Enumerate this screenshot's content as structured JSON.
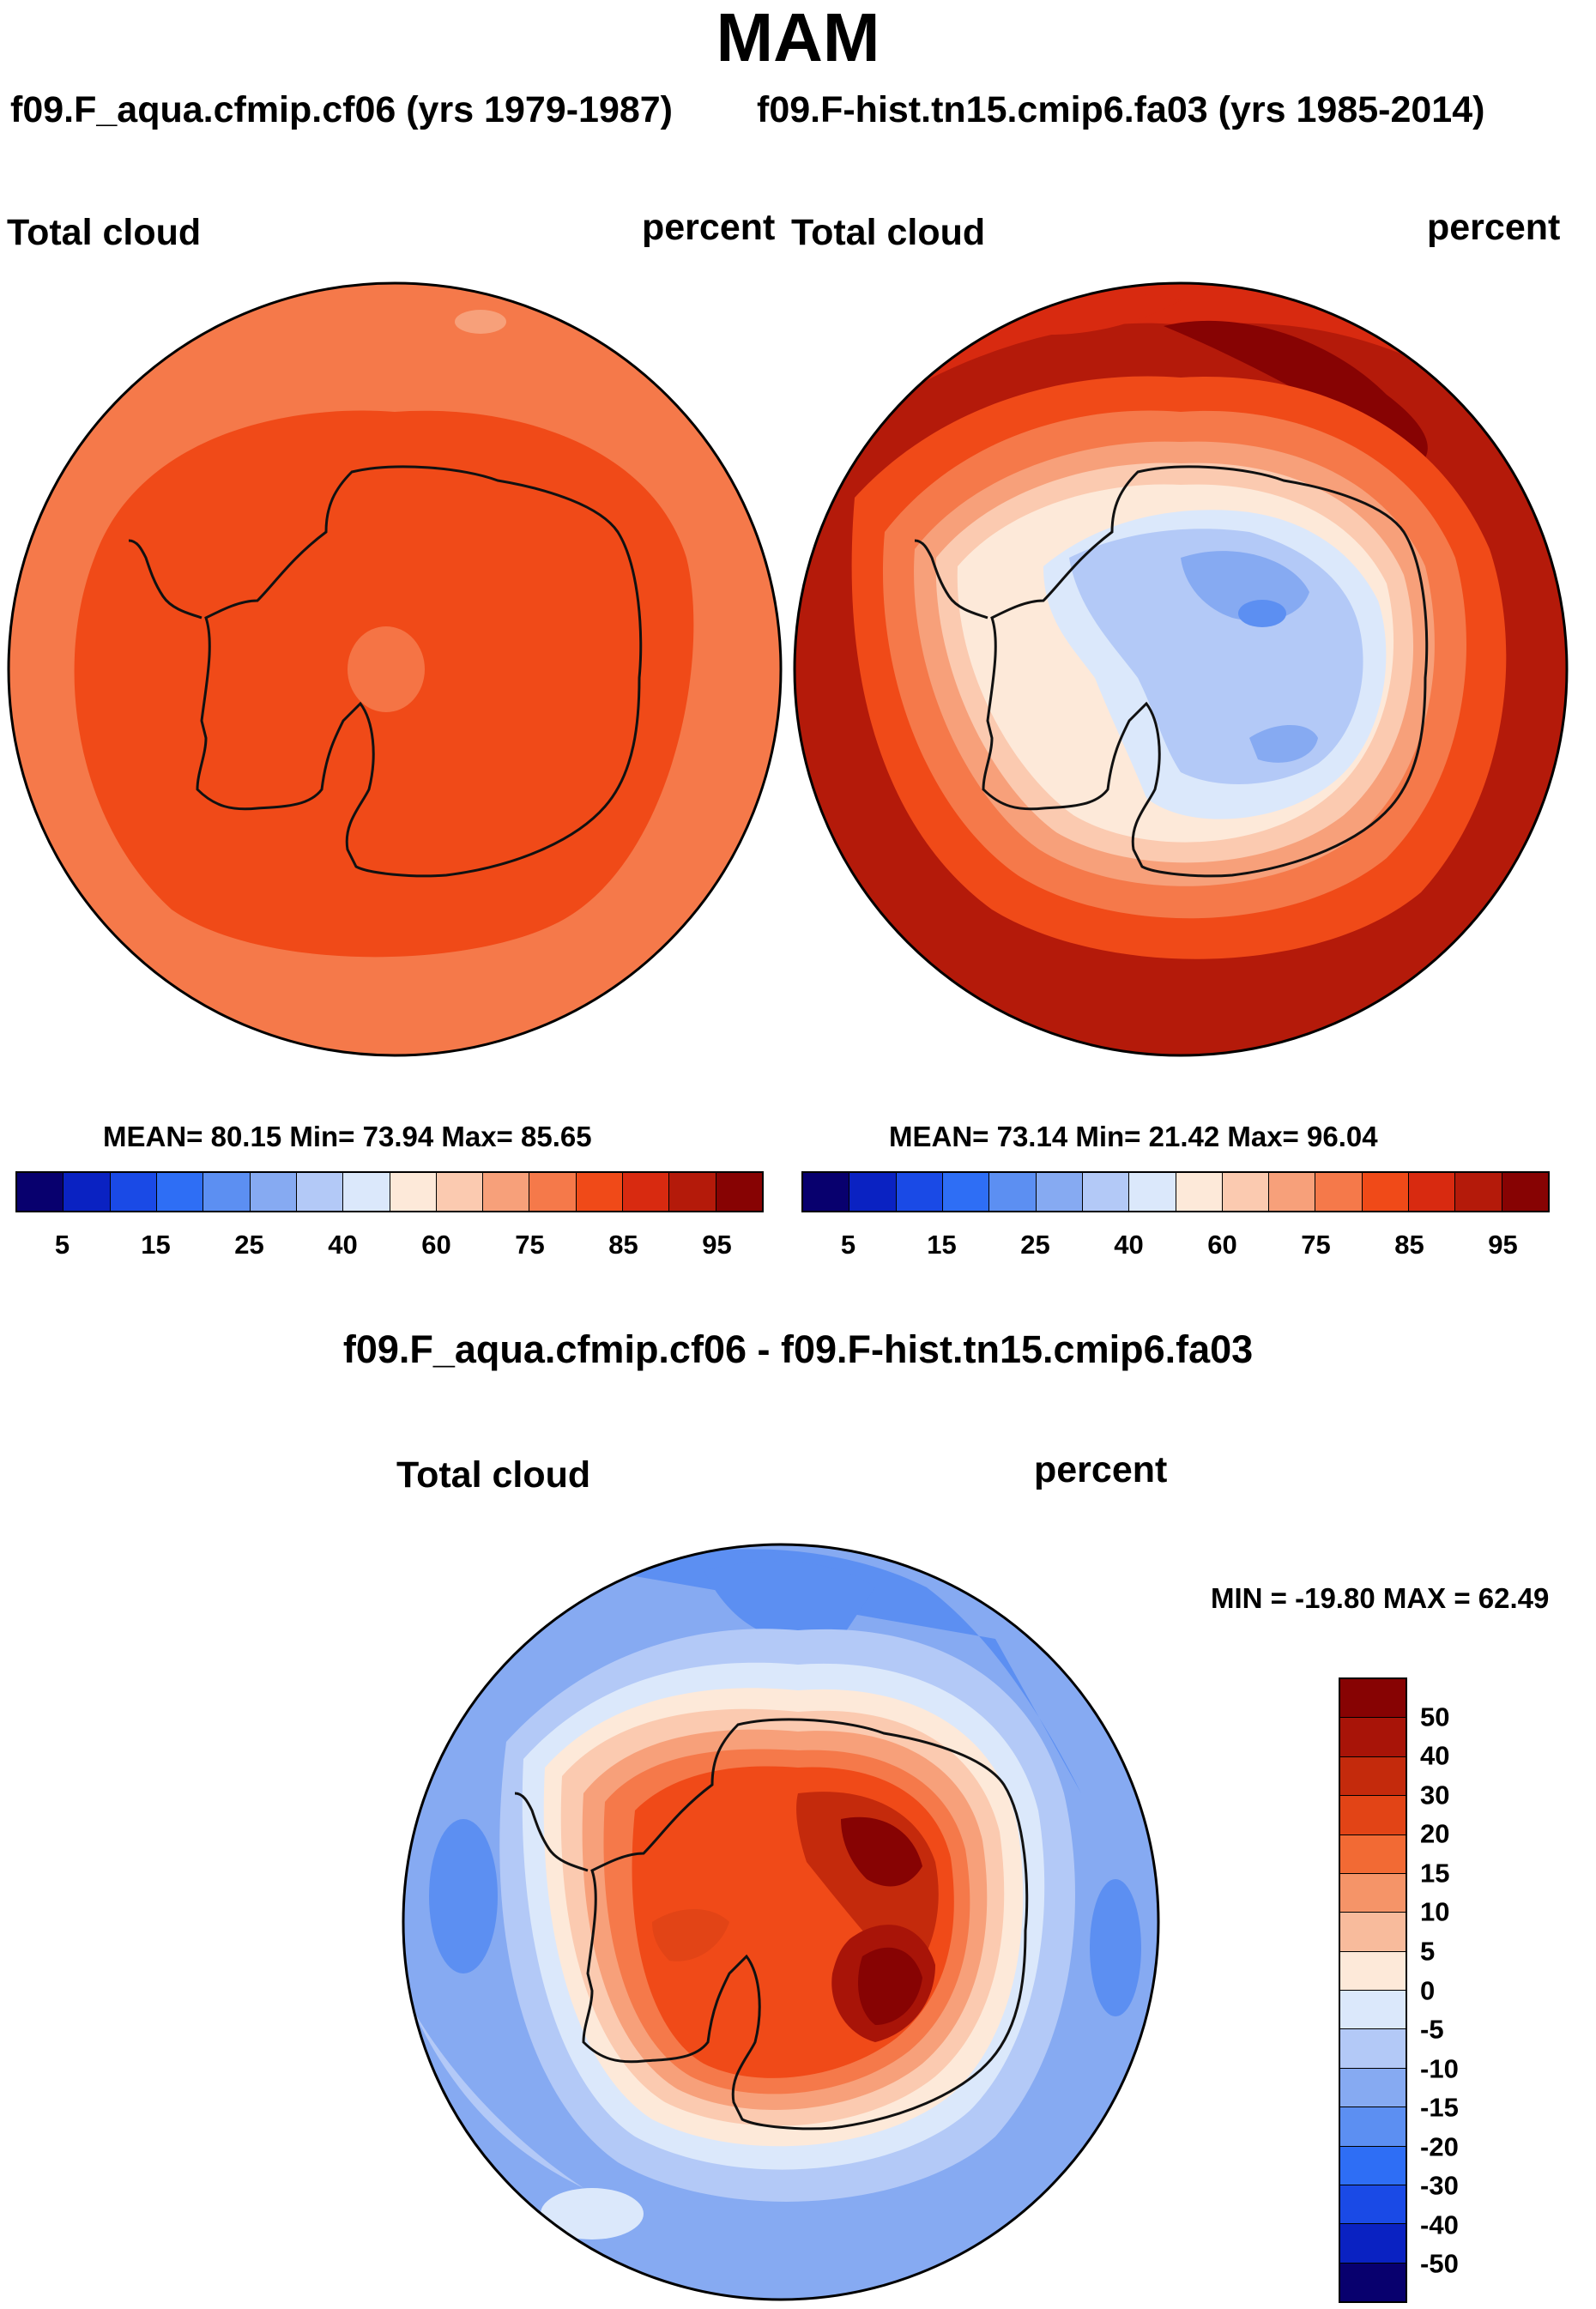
{
  "title": "MAM",
  "panels": [
    {
      "case_title": "f09.F_aqua.cfmip.cf06 (yrs 1979-1987)",
      "var_label": "Total cloud",
      "units": "percent",
      "stats": "MEAN=  80.15  Min=  73.94  Max=  85.65"
    },
    {
      "case_title": "f09.F-hist.tn15.cmip6.fa03 (yrs 1985-2014)",
      "var_label": "Total cloud",
      "units": "percent",
      "stats": "MEAN=  73.14  Min=  21.42  Max=  96.04"
    }
  ],
  "diff": {
    "title": "f09.F_aqua.cfmip.cf06 - f09.F-hist.tn15.cmip6.fa03",
    "var_label": "Total cloud",
    "units": "percent",
    "minmax": "MIN = -19.80 MAX =  62.49"
  },
  "colorbar": {
    "colors": [
      "#08006e",
      "#0a22c2",
      "#1a4ae6",
      "#2e6ef5",
      "#5c8ff2",
      "#86aaf2",
      "#b3c9f7",
      "#dbe8fb",
      "#fde9d9",
      "#fbcab0",
      "#f7a07a",
      "#f5794a",
      "#f04a18",
      "#d82a10",
      "#b41a0a",
      "#870303"
    ],
    "tick_labels": [
      "5",
      "15",
      "25",
      "40",
      "60",
      "75",
      "85",
      "95"
    ]
  },
  "diff_colorbar": {
    "colors": [
      "#870303",
      "#a81408",
      "#c42a0c",
      "#e24416",
      "#f26a34",
      "#f59468",
      "#f8bb9c",
      "#fde9d9",
      "#dbe8fb",
      "#b3c9f7",
      "#86aaf2",
      "#5c8ff2",
      "#2e6ef5",
      "#1a4ae6",
      "#0a22c2",
      "#08006e"
    ],
    "tick_labels": [
      "50",
      "40",
      "30",
      "20",
      "15",
      "10",
      "5",
      "0",
      "-5",
      "-10",
      "-15",
      "-20",
      "-30",
      "-40",
      "-50"
    ]
  }
}
